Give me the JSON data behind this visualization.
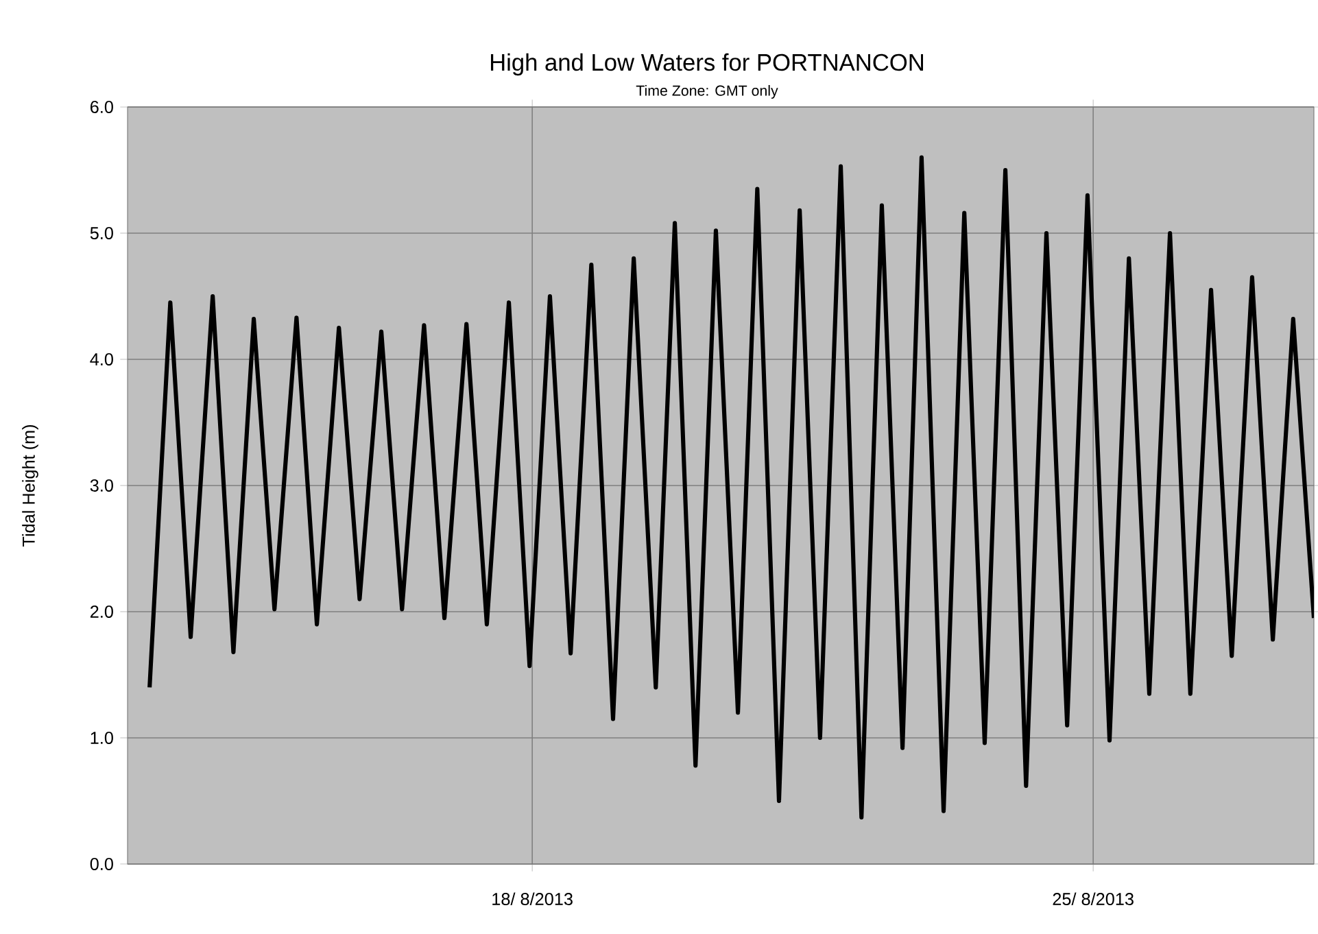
{
  "chart_data": {
    "type": "line",
    "title": "High and Low Waters for PORTNANCON",
    "subtitle": "Time Zone: GMT only",
    "ylabel": "Tidal Height (m)",
    "x": [
      "2013-08-13T05:24",
      "2013-08-13T11:36",
      "2013-08-13T17:42",
      "2013-08-14T00:18",
      "2013-08-14T06:30",
      "2013-08-14T12:36",
      "2013-08-14T18:48",
      "2013-08-15T01:24",
      "2013-08-15T07:30",
      "2013-08-15T14:06",
      "2013-08-15T20:18",
      "2013-08-16T02:48",
      "2013-08-16T09:00",
      "2013-08-16T15:36",
      "2013-08-16T21:42",
      "2013-08-17T04:18",
      "2013-08-17T10:24",
      "2013-08-17T17:00",
      "2013-08-17T23:12",
      "2013-08-18T05:18",
      "2013-08-18T11:30",
      "2013-08-18T17:42",
      "2013-08-19T00:12",
      "2013-08-19T06:24",
      "2013-08-19T13:00",
      "2013-08-19T18:42",
      "2013-08-20T00:54",
      "2013-08-20T07:00",
      "2013-08-20T13:36",
      "2013-08-20T19:24",
      "2013-08-21T01:54",
      "2013-08-21T08:06",
      "2013-08-21T14:12",
      "2013-08-21T20:24",
      "2013-08-22T02:36",
      "2013-08-22T08:42",
      "2013-08-22T14:54",
      "2013-08-22T20:36",
      "2013-08-23T03:12",
      "2013-08-23T09:24",
      "2013-08-23T15:30",
      "2013-08-23T21:42",
      "2013-08-24T03:54",
      "2013-08-24T10:00",
      "2013-08-24T16:12",
      "2013-08-24T22:18",
      "2013-08-25T04:54",
      "2013-08-25T10:42",
      "2013-08-25T16:48",
      "2013-08-25T23:00",
      "2013-08-26T05:06",
      "2013-08-26T11:18",
      "2013-08-26T17:30",
      "2013-08-26T23:36",
      "2013-08-27T05:48",
      "2013-08-27T11:54",
      "2013-08-27T18:06"
    ],
    "series": [
      {
        "color": "#000000",
        "values": [
          1.4,
          4.45,
          1.8,
          4.5,
          1.68,
          4.32,
          2.02,
          4.33,
          1.9,
          4.25,
          2.1,
          4.22,
          2.02,
          4.27,
          1.95,
          4.28,
          1.9,
          4.45,
          1.57,
          4.5,
          1.67,
          4.75,
          1.15,
          4.8,
          1.4,
          5.08,
          0.78,
          5.02,
          1.2,
          5.35,
          0.5,
          5.18,
          1.0,
          5.53,
          0.37,
          5.22,
          0.92,
          5.6,
          0.42,
          5.16,
          0.96,
          5.5,
          0.62,
          5.0,
          1.1,
          5.3,
          0.98,
          4.8,
          1.35,
          5.0,
          1.35,
          4.55,
          1.65,
          4.65,
          1.78,
          4.32,
          1.95
        ]
      }
    ],
    "xlim": [
      "2013-08-12T22:48",
      "2013-08-27T18:06"
    ],
    "xticks": [
      {
        "value": "2013-08-18",
        "label": "18/ 8/2013"
      },
      {
        "value": "2013-08-25",
        "label": "25/ 8/2013"
      }
    ],
    "ylim": [
      0,
      6
    ],
    "yticks": [
      {
        "value": 0,
        "label": "0.0"
      },
      {
        "value": 1,
        "label": "1.0"
      },
      {
        "value": 2,
        "label": "2.0"
      },
      {
        "value": 3,
        "label": "3.0"
      },
      {
        "value": 4,
        "label": "4.0"
      },
      {
        "value": 5,
        "label": "5.0"
      },
      {
        "value": 6,
        "label": "6.0"
      }
    ],
    "grid": true
  }
}
